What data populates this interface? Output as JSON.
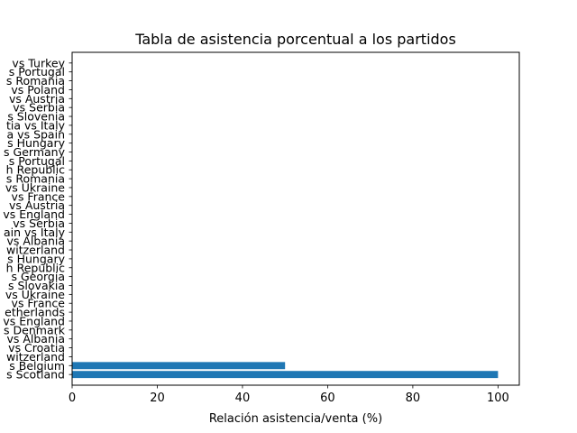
{
  "chart_data": {
    "type": "bar",
    "orientation": "horizontal",
    "title": "Tabla de asistencia porcentual a los partidos",
    "xlabel": "Relación asistencia/venta (%)",
    "ylabel": "",
    "xlim": [
      0,
      105
    ],
    "x_ticks": [
      "0",
      "20",
      "40",
      "60",
      "80",
      "100"
    ],
    "grid": false,
    "bar_color": "#1f77b4",
    "categories": [
      "s Scotland",
      "s Belgium",
      "witzerland",
      "vs Croatia",
      "vs Albania",
      "s Denmark",
      "vs England",
      "etherlands",
      "vs France",
      "vs Ukraine",
      "s Slovakia",
      "s Georgia",
      "h Republic",
      "s Hungary",
      "witzerland",
      "vs Albania",
      "ain vs Italy",
      "vs Serbia",
      "vs England",
      "vs Austria",
      "vs France",
      "vs Ukraine",
      "s Romania",
      "h Republic",
      "s Portugal",
      "s Germany",
      "s Hungary",
      "a vs Spain",
      "tia vs Italy",
      "s Slovenia",
      "vs Serbia",
      "vs Austria",
      "vs Poland",
      "s Romania",
      "s Portugal",
      "vs Turkey"
    ],
    "values": [
      100,
      50,
      0,
      0,
      0,
      0,
      0,
      0,
      0,
      0,
      0,
      0,
      0,
      0,
      0,
      0,
      0,
      0,
      0,
      0,
      0,
      0,
      0,
      0,
      0,
      0,
      0,
      0,
      0,
      0,
      0,
      0,
      0,
      0,
      0,
      0
    ]
  }
}
